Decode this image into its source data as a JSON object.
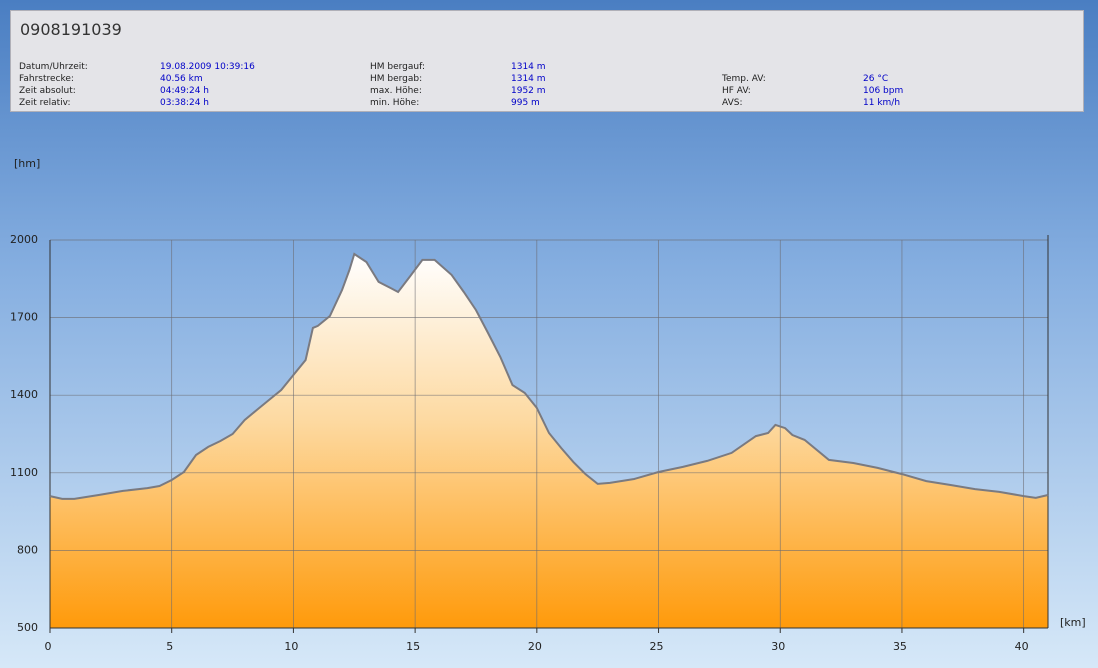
{
  "header": {
    "title": "0908191039",
    "columns": [
      [
        {
          "label": "Datum/Uhrzeit:",
          "value": "19.08.2009 10:39:16"
        },
        {
          "label": "Fahrstrecke:",
          "value": "40.56 km"
        },
        {
          "label": "Zeit absolut:",
          "value": "04:49:24 h"
        },
        {
          "label": "Zeit relativ:",
          "value": "03:38:24 h"
        }
      ],
      [
        {
          "label": "HM bergauf:",
          "value": "1314 m"
        },
        {
          "label": "HM bergab:",
          "value": "1314 m"
        },
        {
          "label": "max. Höhe:",
          "value": "1952 m"
        },
        {
          "label": "min. Höhe:",
          "value": "995 m"
        }
      ],
      [
        {
          "label": "Temp. AV:",
          "value": "26 °C"
        },
        {
          "label": "HF AV:",
          "value": "106 bpm"
        },
        {
          "label": "AVS:",
          "value": "11 km/h"
        }
      ]
    ]
  },
  "chart_data": {
    "type": "area",
    "y_label": "[hm]",
    "x_label": "[km]",
    "x": [
      0,
      0.5,
      1,
      2,
      3,
      4,
      4.5,
      5,
      5.5,
      6,
      6.5,
      7,
      7.5,
      8,
      8.5,
      9,
      9.5,
      10,
      10.5,
      10.8,
      11,
      11.5,
      12,
      12.3,
      12.5,
      13,
      13.5,
      14,
      14.3,
      14.8,
      15.3,
      15.8,
      16.5,
      17,
      17.5,
      18,
      18.5,
      19,
      19.5,
      20,
      20.5,
      21,
      21.5,
      22,
      22.5,
      23,
      24,
      25,
      26,
      27,
      28,
      29,
      29.5,
      29.8,
      30.2,
      30.5,
      31,
      32,
      33,
      34,
      35,
      36,
      37,
      38,
      39,
      40,
      40.5,
      41
    ],
    "y": [
      1010,
      999,
      999,
      1014,
      1030,
      1041,
      1049,
      1072,
      1103,
      1169,
      1200,
      1223,
      1250,
      1304,
      1343,
      1382,
      1420,
      1478,
      1536,
      1660,
      1668,
      1706,
      1807,
      1884,
      1946,
      1915,
      1838,
      1814,
      1799,
      1861,
      1923,
      1923,
      1865,
      1799,
      1729,
      1640,
      1548,
      1439,
      1409,
      1351,
      1254,
      1196,
      1142,
      1095,
      1057,
      1061,
      1076,
      1103,
      1123,
      1146,
      1177,
      1242,
      1254,
      1285,
      1273,
      1246,
      1227,
      1150,
      1138,
      1119,
      1095,
      1068,
      1053,
      1037,
      1026,
      1010,
      1003,
      1014
    ],
    "color": "#7a7a80",
    "xlim": [
      0,
      41
    ],
    "xticks": [
      0,
      5,
      10,
      15,
      20,
      25,
      30,
      35,
      40
    ],
    "ylim": [
      500,
      2000
    ],
    "yticks": [
      500,
      800,
      1100,
      1400,
      1700,
      2000
    ],
    "grid": true
  }
}
